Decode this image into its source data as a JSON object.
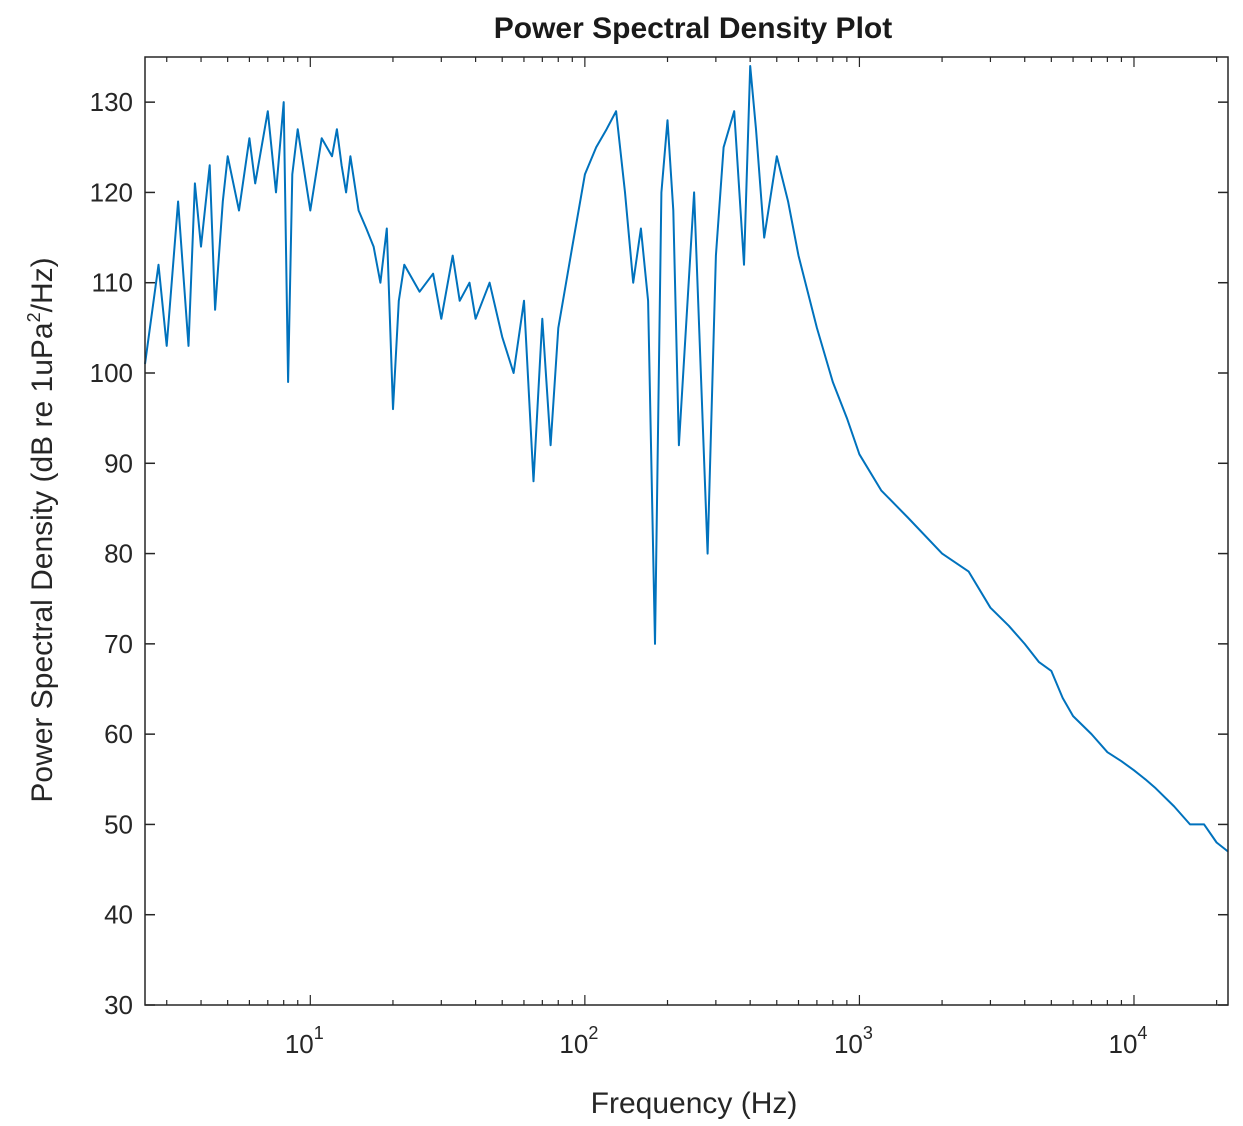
{
  "chart_data": {
    "type": "line",
    "title": "Power Spectral Density Plot",
    "xlabel": "Frequency (Hz)",
    "ylabel": {
      "prefix": "Power Spectral Density (dB re 1uPa",
      "superscript": "2",
      "suffix": "/Hz)"
    },
    "x_scale": "log",
    "xlim": [
      2.5,
      22000
    ],
    "ylim": [
      30,
      135
    ],
    "x_ticks": [
      {
        "value": 10,
        "base": "10",
        "exp": "1"
      },
      {
        "value": 100,
        "base": "10",
        "exp": "2"
      },
      {
        "value": 1000,
        "base": "10",
        "exp": "3"
      },
      {
        "value": 10000,
        "base": "10",
        "exp": "4"
      }
    ],
    "y_ticks": [
      30,
      40,
      50,
      60,
      70,
      80,
      90,
      100,
      110,
      120,
      130
    ],
    "grid": false,
    "legend": "none",
    "line_color": "#0072BD",
    "series": [
      {
        "x": [
          2.5,
          2.8,
          3.0,
          3.3,
          3.6,
          3.8,
          4.0,
          4.3,
          4.5,
          4.8,
          5.0,
          5.5,
          6.0,
          6.3,
          7.0,
          7.5,
          8.0,
          8.3,
          8.6,
          9.0,
          10,
          11,
          12,
          12.5,
          13,
          13.5,
          14,
          15,
          16,
          17,
          18,
          19,
          20,
          21,
          22,
          25,
          28,
          30,
          33,
          35,
          38,
          40,
          45,
          50,
          55,
          60,
          65,
          70,
          75,
          80,
          90,
          100,
          110,
          120,
          130,
          140,
          150,
          160,
          170,
          180,
          190,
          200,
          210,
          220,
          250,
          280,
          300,
          320,
          350,
          380,
          400,
          420,
          450,
          500,
          550,
          600,
          700,
          800,
          900,
          1000,
          1200,
          1500,
          2000,
          2500,
          3000,
          3500,
          4000,
          4500,
          5000,
          5500,
          6000,
          7000,
          8000,
          9000,
          10000,
          11000,
          12000,
          14000,
          16000,
          18000,
          20000,
          22000
        ],
        "y": [
          101,
          112,
          103,
          119,
          103,
          121,
          114,
          123,
          107,
          119,
          124,
          118,
          126,
          121,
          129,
          120,
          130,
          99,
          122,
          127,
          118,
          126,
          124,
          127,
          123,
          120,
          124,
          118,
          116,
          114,
          110,
          116,
          96,
          108,
          112,
          109,
          111,
          106,
          113,
          108,
          110,
          106,
          110,
          104,
          100,
          108,
          88,
          106,
          92,
          105,
          114,
          122,
          125,
          127,
          129,
          120,
          110,
          116,
          108,
          70,
          120,
          128,
          118,
          92,
          120,
          80,
          113,
          125,
          129,
          112,
          134,
          127,
          115,
          124,
          119,
          113,
          105,
          99,
          95,
          91,
          87,
          84,
          80,
          78,
          74,
          72,
          70,
          68,
          67,
          64,
          62,
          60,
          58,
          57,
          56,
          55,
          54,
          52,
          50,
          50,
          48,
          47
        ]
      }
    ]
  }
}
